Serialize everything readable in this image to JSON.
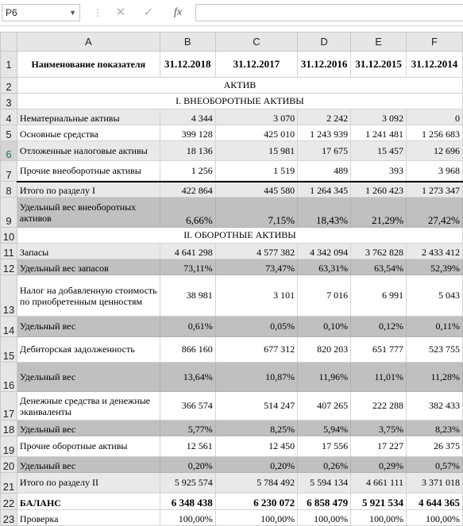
{
  "formula_bar": {
    "cell_ref": "P6",
    "separator": "⋮",
    "cancel_icon": "✕",
    "enter_icon": "✓",
    "fx_label": "fx",
    "formula": ""
  },
  "columns": [
    "A",
    "B",
    "C",
    "D",
    "E",
    "F"
  ],
  "rows": [
    {
      "n": "1",
      "cells": [
        "Наименование показателя",
        "31.12.2018",
        "31.12.2017",
        "31.12.2016",
        "31.12.2015",
        "31.12.2014"
      ]
    },
    {
      "n": "2",
      "cells": [
        "АКТИВ"
      ]
    },
    {
      "n": "3",
      "cells": [
        "I. ВНЕОБОРОТНЫЕ АКТИВЫ"
      ]
    },
    {
      "n": "4",
      "cells": [
        "Нематериальные активы",
        "4 344",
        "3 070",
        "2 242",
        "3 092",
        "0"
      ]
    },
    {
      "n": "5",
      "cells": [
        "Основные средства",
        "399 128",
        "425 010",
        "1 243 939",
        "1 241 481",
        "1 256 683"
      ]
    },
    {
      "n": "6",
      "cells": [
        "Отложенные налоговые активы",
        "18 136",
        "15 981",
        "17 675",
        "15 457",
        "12 696"
      ]
    },
    {
      "n": "7",
      "cells": [
        "Прочие внеоборотные активы",
        "1 256",
        "1 519",
        "489",
        "393",
        "3 968"
      ]
    },
    {
      "n": "8",
      "cells": [
        "Итого по разделу I",
        "422 864",
        "445 580",
        "1 264 345",
        "1 260 423",
        "1 273 347"
      ]
    },
    {
      "n": "9",
      "cells": [
        "Удельный вес внеоборотных активов",
        "6,66%",
        "7,15%",
        "18,43%",
        "21,29%",
        "27,42%"
      ]
    },
    {
      "n": "10",
      "cells": [
        "II. ОБОРОТНЫЕ АКТИВЫ"
      ]
    },
    {
      "n": "11",
      "cells": [
        "Запасы",
        "4 641 298",
        "4 577 382",
        "4 342 094",
        "3 762 828",
        "2 433 412"
      ]
    },
    {
      "n": "12",
      "cells": [
        "Удельный вес запасов",
        "73,11%",
        "73,47%",
        "63,31%",
        "63,54%",
        "52,39%"
      ]
    },
    {
      "n": "13",
      "cells": [
        "Налог на добавленную стоимость по приобретенным ценностям",
        "38 981",
        "3 101",
        "7 016",
        "6 991",
        "5 043"
      ]
    },
    {
      "n": "14",
      "cells": [
        "Удельный вес",
        "0,61%",
        "0,05%",
        "0,10%",
        "0,12%",
        "0,11%"
      ]
    },
    {
      "n": "15",
      "cells": [
        "Дебиторская задолженность",
        "866 160",
        "677 312",
        "820 203",
        "651 777",
        "523 755"
      ]
    },
    {
      "n": "16",
      "cells": [
        "Удельный вес",
        "13,64%",
        "10,87%",
        "11,96%",
        "11,01%",
        "11,28%"
      ]
    },
    {
      "n": "17",
      "cells": [
        "Денежные средства и денежные эквиваленты",
        "366 574",
        "514 247",
        "407 265",
        "222 288",
        "382 433"
      ]
    },
    {
      "n": "18",
      "cells": [
        "Удельный вес",
        "5,77%",
        "8,25%",
        "5,94%",
        "3,75%",
        "8,23%"
      ]
    },
    {
      "n": "19",
      "cells": [
        "Прочие оборотные активы",
        "12 561",
        "12 450",
        "17 556",
        "17 227",
        "26 375"
      ]
    },
    {
      "n": "20",
      "cells": [
        "Удельный вес",
        "0,20%",
        "0,20%",
        "0,26%",
        "0,29%",
        "0,57%"
      ]
    },
    {
      "n": "21",
      "cells": [
        "Итого по разделу II",
        "5 925 574",
        "5 784 492",
        "5 594 134",
        "4 661 111",
        "3 371 018"
      ]
    },
    {
      "n": "22",
      "cells": [
        "БАЛАНС",
        "6 348 438",
        "6 230 072",
        "6 858 479",
        "5 921 534",
        "4 644 365"
      ]
    },
    {
      "n": "23",
      "cells": [
        "Проверка",
        "100,00%",
        "100,00%",
        "100,00%",
        "100,00%",
        "100,00%"
      ]
    }
  ]
}
